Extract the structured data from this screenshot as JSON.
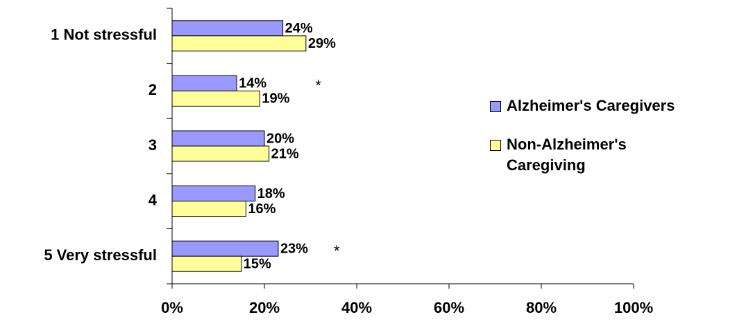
{
  "chart_data": {
    "type": "hbar",
    "categories": [
      "1 Not stressful",
      "2",
      "3",
      "4",
      "5 Very stressful"
    ],
    "series": [
      {
        "name": "Alzheimer's Caregivers",
        "color": "#9999ff",
        "values": [
          24,
          14,
          20,
          18,
          23
        ],
        "value_labels": [
          "24%",
          "14%",
          "20%",
          "18%",
          "23%"
        ]
      },
      {
        "name": "Non-Alzheimer's Caregiving",
        "color": "#ffff99",
        "values": [
          29,
          19,
          21,
          16,
          15
        ],
        "value_labels": [
          "29%",
          "19%",
          "21%",
          "16%",
          "15%"
        ]
      }
    ],
    "xlim": [
      0,
      100
    ],
    "xticks": [
      {
        "value": 0,
        "label": "0%"
      },
      {
        "value": 20,
        "label": "20%"
      },
      {
        "value": 40,
        "label": "40%"
      },
      {
        "value": 60,
        "label": "60%"
      },
      {
        "value": 80,
        "label": "80%"
      },
      {
        "value": 100,
        "label": "100%"
      }
    ],
    "annotations": [
      {
        "category": "2",
        "text": "*"
      },
      {
        "category": "5 Very stressful",
        "text": "*"
      }
    ],
    "legend": "right"
  }
}
